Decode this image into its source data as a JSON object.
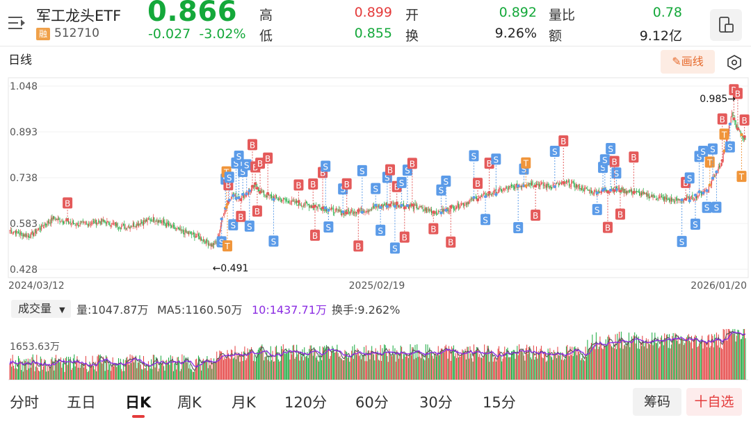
{
  "header": {
    "name": "军工龙头ETF",
    "rong_badge": "融",
    "code": "512710",
    "price": "0.866",
    "change": "-0.027",
    "change_pct": "-3.02%",
    "quotes": [
      {
        "label": "高",
        "value": "0.899",
        "color": "#e43b3b"
      },
      {
        "label": "开",
        "value": "0.892",
        "color": "#14a83a"
      },
      {
        "label": "量比",
        "value": "0.78",
        "color": "#14a83a"
      },
      {
        "label": "低",
        "value": "0.855",
        "color": "#14a83a"
      },
      {
        "label": "换",
        "value": "9.26%",
        "color": "#222222"
      },
      {
        "label": "额",
        "value": "9.12亿",
        "color": "#222222"
      }
    ]
  },
  "toolbar": {
    "period_label": "日线",
    "draw_label": "画线"
  },
  "colors": {
    "up": "#e43b3b",
    "down": "#14a83a",
    "buy_marker": "#e45a5a",
    "sell_marker": "#5b9be8",
    "t_marker": "#f0953a",
    "ma5": "#555555",
    "ma10": "#8a2be2"
  },
  "chart_data": {
    "type": "candlestick",
    "y_ticks": [
      "1.048",
      "0.893",
      "0.738",
      "0.583",
      "0.428"
    ],
    "ylim": [
      0.428,
      1.048
    ],
    "x_ticks": [
      "2024/03/12",
      "2025/02/19",
      "2026/01/20"
    ],
    "max_label": "0.985→",
    "min_label": "←0.491",
    "max_value": 0.985,
    "min_value": 0.491,
    "close_anchors": [
      [
        0,
        0.56
      ],
      [
        20,
        0.54
      ],
      [
        45,
        0.6
      ],
      [
        70,
        0.58
      ],
      [
        95,
        0.59
      ],
      [
        120,
        0.57
      ],
      [
        150,
        0.6
      ],
      [
        175,
        0.56
      ],
      [
        195,
        0.54
      ],
      [
        210,
        0.51
      ],
      [
        215,
        0.52
      ],
      [
        222,
        0.62
      ],
      [
        230,
        0.68
      ],
      [
        240,
        0.67
      ],
      [
        255,
        0.71
      ],
      [
        265,
        0.68
      ],
      [
        275,
        0.67
      ],
      [
        300,
        0.65
      ],
      [
        320,
        0.64
      ],
      [
        345,
        0.62
      ],
      [
        370,
        0.63
      ],
      [
        395,
        0.65
      ],
      [
        420,
        0.64
      ],
      [
        445,
        0.62
      ],
      [
        470,
        0.65
      ],
      [
        495,
        0.68
      ],
      [
        515,
        0.7
      ],
      [
        540,
        0.72
      ],
      [
        560,
        0.71
      ],
      [
        580,
        0.72
      ],
      [
        605,
        0.69
      ],
      [
        630,
        0.7
      ],
      [
        660,
        0.68
      ],
      [
        690,
        0.66
      ],
      [
        710,
        0.67
      ],
      [
        725,
        0.7
      ],
      [
        740,
        0.8
      ],
      [
        750,
        0.95
      ],
      [
        756,
        0.9
      ],
      [
        764,
        0.866
      ]
    ],
    "markers": [
      {
        "i": 60,
        "t": "B"
      },
      {
        "i": 220,
        "t": "S"
      },
      {
        "i": 224,
        "t": "S"
      },
      {
        "i": 225,
        "t": "T"
      },
      {
        "i": 226,
        "t": "T"
      },
      {
        "i": 227,
        "t": "B"
      },
      {
        "i": 228,
        "t": "S"
      },
      {
        "i": 232,
        "t": "S"
      },
      {
        "i": 235,
        "t": "S"
      },
      {
        "i": 238,
        "t": "S"
      },
      {
        "i": 240,
        "t": "B"
      },
      {
        "i": 242,
        "t": "S"
      },
      {
        "i": 246,
        "t": "S"
      },
      {
        "i": 249,
        "t": "S"
      },
      {
        "i": 252,
        "t": "B"
      },
      {
        "i": 255,
        "t": "B"
      },
      {
        "i": 257,
        "t": "B"
      },
      {
        "i": 260,
        "t": "B"
      },
      {
        "i": 268,
        "t": "B"
      },
      {
        "i": 274,
        "t": "S"
      },
      {
        "i": 300,
        "t": "B"
      },
      {
        "i": 315,
        "t": "B"
      },
      {
        "i": 317,
        "t": "B"
      },
      {
        "i": 325,
        "t": "B"
      },
      {
        "i": 328,
        "t": "S"
      },
      {
        "i": 331,
        "t": "S"
      },
      {
        "i": 346,
        "t": "S"
      },
      {
        "i": 350,
        "t": "B"
      },
      {
        "i": 362,
        "t": "B"
      },
      {
        "i": 366,
        "t": "S"
      },
      {
        "i": 380,
        "t": "S"
      },
      {
        "i": 385,
        "t": "S"
      },
      {
        "i": 392,
        "t": "S"
      },
      {
        "i": 395,
        "t": "B"
      },
      {
        "i": 400,
        "t": "S"
      },
      {
        "i": 402,
        "t": "B"
      },
      {
        "i": 407,
        "t": "S"
      },
      {
        "i": 410,
        "t": "B"
      },
      {
        "i": 413,
        "t": "S"
      },
      {
        "i": 418,
        "t": "B"
      },
      {
        "i": 440,
        "t": "B"
      },
      {
        "i": 448,
        "t": "S"
      },
      {
        "i": 453,
        "t": "S"
      },
      {
        "i": 458,
        "t": "B"
      },
      {
        "i": 482,
        "t": "S"
      },
      {
        "i": 486,
        "t": "B"
      },
      {
        "i": 494,
        "t": "S"
      },
      {
        "i": 498,
        "t": "B"
      },
      {
        "i": 505,
        "t": "S"
      },
      {
        "i": 528,
        "t": "S"
      },
      {
        "i": 534,
        "t": "S"
      },
      {
        "i": 536,
        "t": "T"
      },
      {
        "i": 546,
        "t": "B"
      },
      {
        "i": 566,
        "t": "S"
      },
      {
        "i": 575,
        "t": "B"
      },
      {
        "i": 610,
        "t": "S"
      },
      {
        "i": 616,
        "t": "S"
      },
      {
        "i": 618,
        "t": "S"
      },
      {
        "i": 621,
        "t": "B"
      },
      {
        "i": 624,
        "t": "S"
      },
      {
        "i": 630,
        "t": "S"
      },
      {
        "i": 634,
        "t": "B"
      },
      {
        "i": 628,
        "t": "B"
      },
      {
        "i": 648,
        "t": "B"
      },
      {
        "i": 698,
        "t": "S"
      },
      {
        "i": 702,
        "t": "B"
      },
      {
        "i": 706,
        "t": "S"
      },
      {
        "i": 712,
        "t": "S"
      },
      {
        "i": 716,
        "t": "S"
      },
      {
        "i": 720,
        "t": "S"
      },
      {
        "i": 724,
        "t": "S"
      },
      {
        "i": 727,
        "t": "T"
      },
      {
        "i": 730,
        "t": "S"
      },
      {
        "i": 734,
        "t": "S"
      },
      {
        "i": 740,
        "t": "B"
      },
      {
        "i": 742,
        "t": "T"
      },
      {
        "i": 748,
        "t": "S"
      },
      {
        "i": 752,
        "t": "B"
      },
      {
        "i": 756,
        "t": "B"
      },
      {
        "i": 760,
        "t": "T"
      },
      {
        "i": 763,
        "t": "B"
      }
    ]
  },
  "volume": {
    "selector_label": "成交量",
    "vol_text": "量:1047.87万",
    "ma5_text": "MA5:1160.50万",
    "ma10_text": "10:1437.71万",
    "turnover_text": "换手:9.262%",
    "y_label": "1653.63万"
  },
  "tabs": [
    {
      "label": "分时",
      "active": false
    },
    {
      "label": "五日",
      "active": false
    },
    {
      "label": "日K",
      "active": true
    },
    {
      "label": "周K",
      "active": false
    },
    {
      "label": "月K",
      "active": false
    },
    {
      "label": "120分",
      "active": false
    },
    {
      "label": "60分",
      "active": false
    },
    {
      "label": "30分",
      "active": false
    },
    {
      "label": "15分",
      "active": false
    }
  ],
  "footer_buttons": {
    "chips_label": "筹码",
    "watchlist_label": "十自选"
  }
}
